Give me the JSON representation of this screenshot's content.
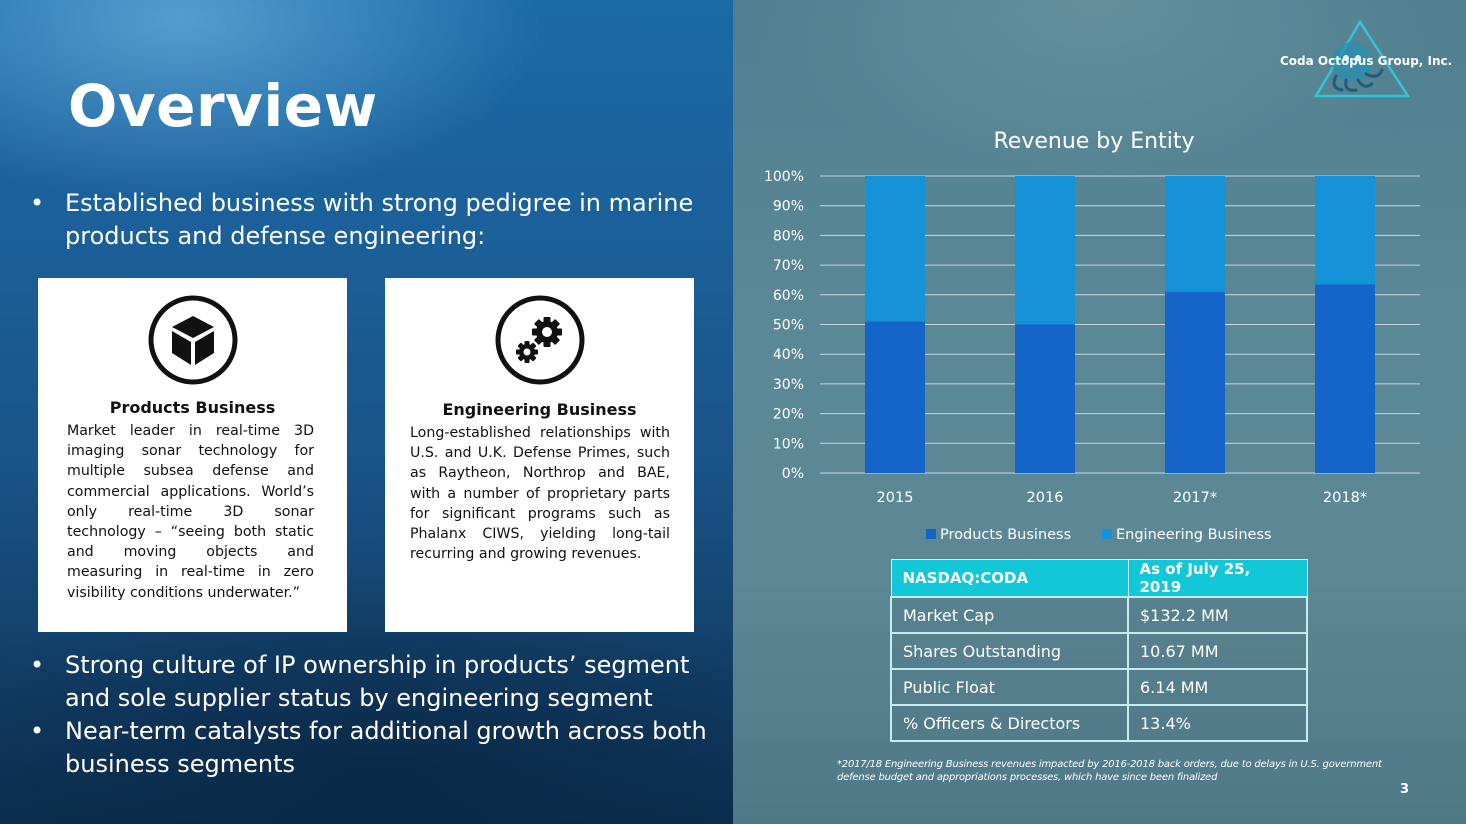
{
  "slide": {
    "title": "Overview",
    "company": "Coda Octopus Group, Inc.",
    "page_number": "3"
  },
  "bullets": {
    "symbol": "•",
    "top": "Established business with strong pedigree in marine products and defense engineering:",
    "bottom": [
      "Strong culture of IP ownership in products’ segment and sole supplier status by engineering segment",
      "Near-term catalysts for additional growth across both business segments"
    ]
  },
  "cards": {
    "products": {
      "icon": "cube-icon",
      "title": "Products Business",
      "text": "Market leader in real-time 3D imaging sonar technology for multiple subsea defense and commercial applications. World’s only real-time 3D sonar technology – “seeing both static and moving objects and measuring in real-time in zero visibility conditions underwater.”"
    },
    "engineering": {
      "icon": "gears-icon",
      "title": "Engineering Business",
      "text": "Long-established relationships with U.S. and U.K. Defense Primes, such as Raytheon, Northrop and BAE, with a number of proprietary parts for significant programs such as Phalanx CIWS, yielding long-tail recurring and growing revenues."
    }
  },
  "chart_data": {
    "type": "bar",
    "stacked": true,
    "title": "Revenue by Entity",
    "categories": [
      "2015",
      "2016",
      "2017*",
      "2018*"
    ],
    "series": [
      {
        "name": "Products Business",
        "values": [
          51,
          50,
          61,
          63.5
        ],
        "color": "#1565c8"
      },
      {
        "name": "Engineering Business",
        "values": [
          49,
          50,
          39,
          36.5
        ],
        "color": "#1592d8"
      }
    ],
    "ylim": [
      0,
      100
    ],
    "yticks": [
      "0%",
      "10%",
      "20%",
      "30%",
      "40%",
      "50%",
      "60%",
      "70%",
      "80%",
      "90%",
      "100%"
    ],
    "grid": true,
    "legend": "bottom"
  },
  "stats_table": {
    "header": [
      "NASDAQ:CODA",
      "As of July 25, 2019"
    ],
    "rows": [
      [
        "Market Cap",
        "$132.2 MM"
      ],
      [
        "Shares Outstanding",
        "10.67 MM"
      ],
      [
        "Public Float",
        "6.14 MM"
      ],
      [
        "% Officers & Directors",
        "13.4%"
      ]
    ]
  },
  "footnote": "*2017/18 Engineering Business revenues impacted by 2016-2018 back orders, due to delays in U.S. government defense budget and appropriations processes, which have since been finalized",
  "colors": {
    "header_teal": "#12c8d8",
    "products_blue": "#1565c8",
    "engineering_blue": "#1592d8"
  }
}
